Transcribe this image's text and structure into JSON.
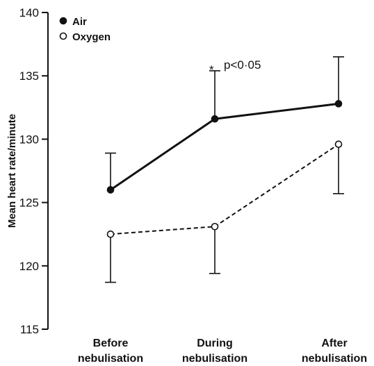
{
  "chart_data": {
    "type": "line",
    "categories": [
      "Before nebulisation",
      "During nebulisation",
      "After nebulisation"
    ],
    "category_lines": [
      [
        "Before",
        "nebulisation"
      ],
      [
        "During",
        "nebulisation"
      ],
      [
        "After",
        "nebulisation"
      ]
    ],
    "ylabel": "Mean heart rate/minute",
    "ylim": [
      115,
      140
    ],
    "yticks": [
      "115",
      "120",
      "125",
      "130",
      "135",
      "140"
    ],
    "grid": false,
    "legend_position": "top-left",
    "series": [
      {
        "name": "Air",
        "marker": "filled-circle",
        "line_style": "solid",
        "values": [
          126.0,
          131.6,
          132.8
        ],
        "error_upper": [
          128.9,
          135.4,
          136.5
        ],
        "error_lower": [
          null,
          null,
          null
        ]
      },
      {
        "name": "Oxygen",
        "marker": "open-circle",
        "line_style": "dashed",
        "values": [
          122.5,
          123.1,
          129.6
        ],
        "error_upper": [
          null,
          null,
          null
        ],
        "error_lower": [
          118.7,
          119.4,
          125.7
        ]
      }
    ],
    "annotation": {
      "star": "*",
      "text": "p<0·05",
      "category_index": 1
    },
    "colors": {
      "ink": "#111111",
      "background": "#ffffff"
    }
  }
}
